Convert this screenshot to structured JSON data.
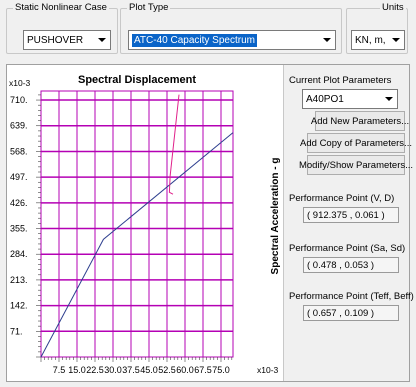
{
  "header": {
    "case_label": "Static Nonlinear Case",
    "case_value": "PUSHOVER",
    "plot_type_label": "Plot Type",
    "plot_type_value": "ATC-40 Capacity Spectrum",
    "units_label": "Units",
    "units_value": "KN, m, C"
  },
  "side": {
    "current_params_label": "Current Plot Parameters",
    "params_value": "A40PO1",
    "add_new_label": "Add New Parameters...",
    "add_copy_label": "Add Copy of Parameters...",
    "modify_label": "Modify/Show Parameters...",
    "pp_vd_label": "Performance Point (V, D)",
    "pp_vd_value": "( 912.375 , 0.061 )",
    "pp_sasd_label": "Performance Point (Sa, Sd)",
    "pp_sasd_value": "( 0.478 , 0.053 )",
    "pp_teff_label": "Performance Point (Teff, Beff)",
    "pp_teff_value": "( 0.657 , 0.109 )"
  },
  "colors": {
    "grid": "#b400b4",
    "capacity_curve": "#2e3f8f",
    "demand_curve": "#e0208a"
  },
  "chart_data": {
    "type": "line",
    "title": "Spectral Displacement",
    "ylabel": "Spectral Acceleration - g",
    "x_multiplier": "x10-3",
    "y_multiplier": "x10-3",
    "xlim": [
      0,
      80
    ],
    "ylim": [
      0,
      735
    ],
    "x_ticks": [
      7.5,
      15.0,
      22.5,
      30.0,
      37.5,
      45.0,
      52.5,
      60.0,
      67.5,
      75.0
    ],
    "x_tick_labels": [
      "7.5",
      "15.0",
      "22.5",
      "30.0",
      "37.5",
      "45.0",
      "52.5",
      "60.0",
      "67.5",
      "75.0"
    ],
    "y_ticks": [
      71,
      142,
      213,
      284,
      355,
      426,
      497,
      568,
      639,
      710
    ],
    "y_tick_labels": [
      "71.",
      "142.",
      "213.",
      "284.",
      "355.",
      "426.",
      "497.",
      "568.",
      "639.",
      "710."
    ],
    "grid": true,
    "series": [
      {
        "key": "capacity",
        "x": [
          0,
          26,
          80
        ],
        "y": [
          0,
          325,
          620
        ]
      },
      {
        "key": "demand",
        "x": [
          57.5,
          53.8,
          53.5,
          55.0
        ],
        "y": [
          725,
          500,
          455,
          450
        ]
      }
    ]
  }
}
